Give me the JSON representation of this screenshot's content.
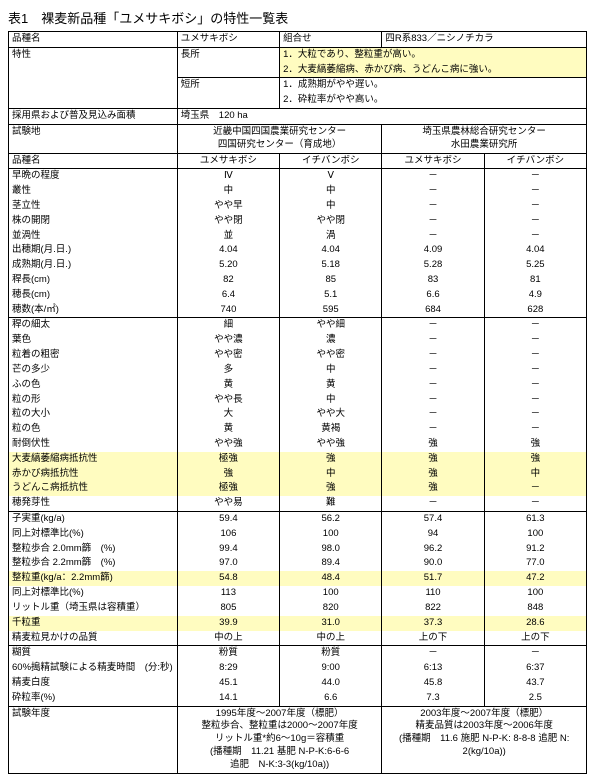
{
  "title": "表1　裸麦新品種「ユメサキボシ」の特性一覧表",
  "h": {
    "hinshu": "品種名",
    "yume": "ユメサキボシ",
    "kumi": "組合せ",
    "kumival": "四R系833／ニシノチカラ"
  },
  "tokusei": {
    "l": "特性",
    "cho": "長所",
    "cho1": "1．大粒であり、整粒重が高い。",
    "cho2": "2．大麦縞萎縮病、赤かび病、うどんこ病に強い。",
    "tan": "短所",
    "tan1": "1．成熟期がやや遅い。",
    "tan2": "2．砕粒率がやや高い。"
  },
  "saiyo": {
    "l": "採用県および普及見込み面積",
    "v": "埼玉県　120 ha"
  },
  "shiken": {
    "l": "試験地",
    "a": "近畿中国四国農業研究センター\n四国研究センター（育成地）",
    "b": "埼玉県農林総合研究センター\n水田農業研究所"
  },
  "hinshu2": {
    "l": "品種名",
    "a": "ユメサキボシ",
    "b": "イチバンボシ",
    "c": "ユメサキボシ",
    "d": "イチバンボシ"
  },
  "rows": [
    {
      "l": "早晩の程度",
      "a": "Ⅳ",
      "b": "Ⅴ",
      "c": "－",
      "d": "－"
    },
    {
      "l": "叢性",
      "a": "中",
      "b": "中",
      "c": "－",
      "d": "－"
    },
    {
      "l": "茎立性",
      "a": "やや早",
      "b": "中",
      "c": "－",
      "d": "－"
    },
    {
      "l": "株の開閉",
      "a": "やや閉",
      "b": "やや閉",
      "c": "－",
      "d": "－"
    },
    {
      "l": "並渦性",
      "a": "並",
      "b": "渦",
      "c": "－",
      "d": "－"
    },
    {
      "l": "出穂期(月.日.)",
      "a": "4.04",
      "b": "4.04",
      "c": "4.09",
      "d": "4.04"
    },
    {
      "l": "成熟期(月.日.)",
      "a": "5.20",
      "b": "5.18",
      "c": "5.28",
      "d": "5.25"
    },
    {
      "l": "稈長(cm)",
      "a": "82",
      "b": "85",
      "c": "83",
      "d": "81"
    },
    {
      "l": "穂長(cm)",
      "a": "6.4",
      "b": "5.1",
      "c": "6.6",
      "d": "4.9"
    },
    {
      "l": "穂数(本/㎡)",
      "a": "740",
      "b": "595",
      "c": "684",
      "d": "628"
    }
  ],
  "rows2": [
    {
      "l": "稈の細太",
      "a": "細",
      "b": "やや細",
      "c": "－",
      "d": "－"
    },
    {
      "l": "葉色",
      "a": "やや濃",
      "b": "濃",
      "c": "－",
      "d": "－"
    },
    {
      "l": "粒着の粗密",
      "a": "やや密",
      "b": "やや密",
      "c": "－",
      "d": "－"
    },
    {
      "l": "芒の多少",
      "a": "多",
      "b": "中",
      "c": "－",
      "d": "－"
    },
    {
      "l": "ふの色",
      "a": "黄",
      "b": "黄",
      "c": "－",
      "d": "－"
    },
    {
      "l": "粒の形",
      "a": "やや長",
      "b": "中",
      "c": "－",
      "d": "－"
    },
    {
      "l": "粒の大小",
      "a": "大",
      "b": "やや大",
      "c": "－",
      "d": "－"
    },
    {
      "l": "粒の色",
      "a": "黄",
      "b": "黄褐",
      "c": "－",
      "d": "－"
    },
    {
      "l": "耐倒伏性",
      "a": "やや強",
      "b": "やや強",
      "c": "強",
      "d": "強"
    },
    {
      "l": "大麦縞萎縮病抵抗性",
      "a": "極強",
      "b": "強",
      "c": "強",
      "d": "強",
      "hl": 1
    },
    {
      "l": "赤かび病抵抗性",
      "a": "強",
      "b": "中",
      "c": "強",
      "d": "中",
      "hl": 1
    },
    {
      "l": "うどんこ病抵抗性",
      "a": "極強",
      "b": "強",
      "c": "強",
      "d": "－",
      "hl": 1
    },
    {
      "l": "穂発芽性",
      "a": "やや易",
      "b": "難",
      "c": "－",
      "d": "－"
    }
  ],
  "rows3": [
    {
      "l": "子実重(kg/a)",
      "a": "59.4",
      "b": "56.2",
      "c": "57.4",
      "d": "61.3"
    },
    {
      "l": "同上対標準比(%)",
      "a": "106",
      "b": "100",
      "c": "94",
      "d": "100"
    },
    {
      "l": "整粒歩合 2.0mm篩　(%)",
      "a": "99.4",
      "b": "98.0",
      "c": "96.2",
      "d": "91.2"
    },
    {
      "l": "整粒歩合 2.2mm篩　(%)",
      "a": "97.0",
      "b": "89.4",
      "c": "90.0",
      "d": "77.0"
    },
    {
      "l": "整粒重(kg/a：2.2mm篩)",
      "a": "54.8",
      "b": "48.4",
      "c": "51.7",
      "d": "47.2",
      "hl": 1
    },
    {
      "l": "同上対標準比(%)",
      "a": "113",
      "b": "100",
      "c": "110",
      "d": "100"
    },
    {
      "l": "リットル重（埼玉県は容積重）",
      "a": "805",
      "b": "820",
      "c": "822",
      "d": "848"
    },
    {
      "l": "千粒重",
      "a": "39.9",
      "b": "31.0",
      "c": "37.3",
      "d": "28.6",
      "hl": 1
    },
    {
      "l": "精麦粒見かけの品質",
      "a": "中の上",
      "b": "中の上",
      "c": "上の下",
      "d": "上の下"
    }
  ],
  "rows4": [
    {
      "l": "糊質",
      "a": "粉質",
      "b": "粉質",
      "c": "－",
      "d": "－"
    },
    {
      "l": "60%搗精試験による精麦時間　(分:秒)",
      "a": "8:29",
      "b": "9:00",
      "c": "6:13",
      "d": "6:37"
    },
    {
      "l": "精麦白度",
      "a": "45.1",
      "b": "44.0",
      "c": "45.8",
      "d": "43.7"
    },
    {
      "l": "砕粒率(%)",
      "a": "14.1",
      "b": "6.6",
      "c": "7.3",
      "d": "2.5"
    }
  ],
  "nendo": {
    "l": "試験年度",
    "a": "1995年度～2007年度（標肥）\n整粒歩合、整粒重は2000～2007年度\nリットル重*約6～10g＝容積重\n(播種期　11.21 基肥 N-P-K:6-6-6　\n追肥　N-K:3-3(kg/10a))",
    "b": "2003年度～2007年度（標肥）\n精麦品質は2003年度～2006年度\n(播種期　11.6 施肥 N-P-K: 8-8-8 追肥 N:\n2(kg/10a))"
  }
}
